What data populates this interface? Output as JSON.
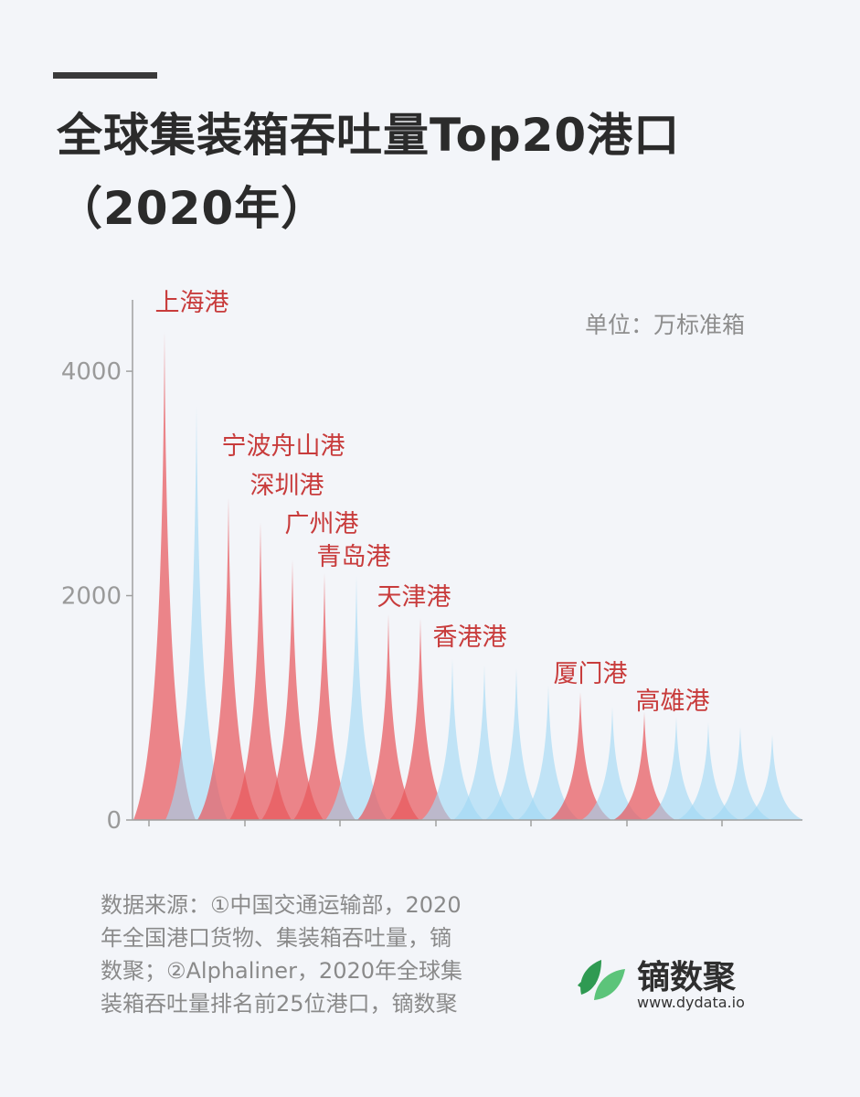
{
  "header": {
    "title_line1": "全球集装箱吞吐量Top20港口",
    "title_line2": "（2020年）"
  },
  "unit": "单位：万标准箱",
  "source": {
    "lines": [
      "数据来源：①中国交通运输部，2020",
      "年全国港口货物、集装箱吞吐量，镝",
      "数聚；②Alphaliner，2020年全球集",
      "装箱吞吐量排名前25位港口，镝数聚"
    ]
  },
  "brand": {
    "name": "镝数聚",
    "url": "www.dydata.io"
  },
  "colors": {
    "china": "#e8595d",
    "other": "#9fd8f3",
    "label": "#c83c3c",
    "axis": "#a0a0a0",
    "logo_dark": "#2f9a52",
    "logo_light": "#5cc47a"
  },
  "chart_data": {
    "type": "area",
    "title": "全球集装箱吞吐量Top20港口（2020年）",
    "ylabel": "",
    "xlabel": "",
    "ylim": [
      0,
      4400
    ],
    "yticks": [
      0,
      2000,
      4000
    ],
    "grid": false,
    "series": [
      {
        "name": "",
        "category": "china",
        "label": "上海港",
        "value": 4350
      },
      {
        "name": "",
        "category": "other",
        "label": "",
        "value": 3690
      },
      {
        "name": "",
        "category": "china",
        "label": "宁波舟山港",
        "value": 2872
      },
      {
        "name": "",
        "category": "china",
        "label": "深圳港",
        "value": 2655
      },
      {
        "name": "",
        "category": "china",
        "label": "广州港",
        "value": 2319
      },
      {
        "name": "",
        "category": "china",
        "label": "青岛港",
        "value": 2201
      },
      {
        "name": "",
        "category": "other",
        "label": "",
        "value": 2180
      },
      {
        "name": "",
        "category": "china",
        "label": "天津港",
        "value": 1835
      },
      {
        "name": "",
        "category": "china",
        "label": "香港港",
        "value": 1797
      },
      {
        "name": "",
        "category": "other",
        "label": "",
        "value": 1435
      },
      {
        "name": "",
        "category": "other",
        "label": "",
        "value": 1380
      },
      {
        "name": "",
        "category": "other",
        "label": "",
        "value": 1350
      },
      {
        "name": "",
        "category": "other",
        "label": "",
        "value": 1200
      },
      {
        "name": "",
        "category": "china",
        "label": "厦门港",
        "value": 1141
      },
      {
        "name": "",
        "category": "other",
        "label": "",
        "value": 1010
      },
      {
        "name": "",
        "category": "china",
        "label": "高雄港",
        "value": 962
      },
      {
        "name": "",
        "category": "other",
        "label": "",
        "value": 920
      },
      {
        "name": "",
        "category": "other",
        "label": "",
        "value": 870
      },
      {
        "name": "",
        "category": "other",
        "label": "",
        "value": 830
      },
      {
        "name": "",
        "category": "other",
        "label": "",
        "value": 760
      }
    ]
  }
}
